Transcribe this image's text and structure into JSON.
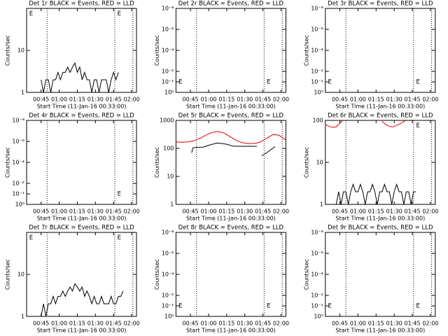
{
  "chart_data": [
    {
      "type": "line",
      "title": "Det 1r BLACK = Events, RED = LLD",
      "y_label": "Counts/sec",
      "x_label": "Start Time (11-Jan-16 00:33:00)",
      "xlim": [
        0,
        91
      ],
      "xticks": [
        {
          "value": 12,
          "label": "00:45"
        },
        {
          "value": 27,
          "label": "01:00"
        },
        {
          "value": 42,
          "label": "01:15"
        },
        {
          "value": 57,
          "label": "01:30"
        },
        {
          "value": 72,
          "label": "01:45"
        },
        {
          "value": 87,
          "label": "02:00"
        }
      ],
      "ylog": true,
      "ylim": [
        1,
        100
      ],
      "yticks": [
        1,
        10
      ],
      "vlines": [
        17,
        73,
        88
      ],
      "series": [
        {
          "name": "Events",
          "color": "#000000",
          "x": [
            12,
            14,
            16,
            18,
            20,
            22,
            24,
            26,
            28,
            30,
            32,
            34,
            36,
            38,
            40,
            42,
            44,
            46,
            48,
            50,
            52,
            54,
            56,
            58,
            60,
            62,
            64,
            66,
            68,
            70,
            72,
            74,
            76
          ],
          "values": [
            2,
            1,
            2,
            2,
            1,
            2,
            2,
            3,
            2,
            3,
            3,
            4,
            3,
            4,
            5,
            3,
            4,
            2,
            3,
            2,
            2,
            1,
            2,
            2,
            1,
            2,
            2,
            2,
            1,
            2,
            3,
            2,
            3
          ]
        }
      ],
      "annotations": [
        {
          "text": "E",
          "x": 1,
          "y": 75
        },
        {
          "text": "E",
          "x": 74,
          "y": 75
        }
      ]
    },
    {
      "type": "line",
      "title": "Det 2r BLACK = Events, RED = LLD",
      "y_label": "Counts/sec",
      "x_label": "Start Time (11-Jan-16 00:33:00)",
      "xlim": [
        0,
        91
      ],
      "xticks": [
        {
          "value": 12,
          "label": "00:45"
        },
        {
          "value": 27,
          "label": "01:00"
        },
        {
          "value": 42,
          "label": "01:15"
        },
        {
          "value": 57,
          "label": "01:30"
        },
        {
          "value": 72,
          "label": "01:45"
        },
        {
          "value": 87,
          "label": "02:00"
        }
      ],
      "ylog": true,
      "ylim": [
        1,
        1e-08
      ],
      "yticks": [
        {
          "value": 1e-08,
          "label": "10⁻⁸"
        },
        {
          "value": 1e-06,
          "label": "10⁻⁶"
        },
        {
          "value": 0.0001,
          "label": "10⁻⁴"
        },
        {
          "value": 0.01,
          "label": "10⁻²"
        },
        {
          "value": 0.1,
          "label": "10⁻¹"
        },
        {
          "value": 1,
          "label": "10⁰"
        }
      ],
      "vlines": [
        17,
        73,
        88
      ],
      "series": [],
      "annotations": [
        {
          "text": "E",
          "x": 1,
          "y": 0.1
        },
        {
          "text": "E",
          "x": 74,
          "y": 0.1
        }
      ]
    },
    {
      "type": "line",
      "title": "Det 3r BLACK = Events, RED = LLD",
      "y_label": "Counts/sec",
      "x_label": "Start Time (11-Jan-16 00:33:00)",
      "xlim": [
        0,
        91
      ],
      "xticks": [
        {
          "value": 12,
          "label": "00:45"
        },
        {
          "value": 27,
          "label": "01:00"
        },
        {
          "value": 42,
          "label": "01:15"
        },
        {
          "value": 57,
          "label": "01:30"
        },
        {
          "value": 72,
          "label": "01:45"
        },
        {
          "value": 87,
          "label": "02:00"
        }
      ],
      "ylog": true,
      "ylim": [
        1,
        1e-08
      ],
      "yticks": [
        {
          "value": 1e-08,
          "label": "10⁻⁸"
        },
        {
          "value": 1e-06,
          "label": "10⁻⁶"
        },
        {
          "value": 0.0001,
          "label": "10⁻⁴"
        },
        {
          "value": 0.01,
          "label": "10⁻²"
        },
        {
          "value": 0.1,
          "label": "10⁻¹"
        },
        {
          "value": 1,
          "label": "10⁰"
        }
      ],
      "vlines": [
        17,
        73,
        88
      ],
      "series": [],
      "annotations": [
        {
          "text": "E",
          "x": 1,
          "y": 0.1
        },
        {
          "text": "E",
          "x": 74,
          "y": 0.1
        }
      ]
    },
    {
      "type": "line",
      "title": "Det 4r BLACK = Events, RED = LLD",
      "y_label": "Counts/sec",
      "x_label": "Start Time (11-Jan-16 00:33:00)",
      "xlim": [
        0,
        91
      ],
      "xticks": [
        {
          "value": 12,
          "label": "00:45"
        },
        {
          "value": 27,
          "label": "01:00"
        },
        {
          "value": 42,
          "label": "01:15"
        },
        {
          "value": 57,
          "label": "01:30"
        },
        {
          "value": 72,
          "label": "01:45"
        },
        {
          "value": 87,
          "label": "02:00"
        }
      ],
      "ylog": true,
      "ylim": [
        1,
        1e-08
      ],
      "yticks": [
        {
          "value": 1e-08,
          "label": "10⁻⁸"
        },
        {
          "value": 1e-06,
          "label": "10⁻⁶"
        },
        {
          "value": 0.0001,
          "label": "10⁻⁴"
        },
        {
          "value": 0.01,
          "label": "10⁻²"
        },
        {
          "value": 0.1,
          "label": "10⁻¹"
        },
        {
          "value": 1,
          "label": "10⁰"
        }
      ],
      "vlines": [
        17,
        73,
        88
      ],
      "series": [],
      "annotations": [
        {
          "text": "E",
          "x": 74,
          "y": 0.1
        }
      ]
    },
    {
      "type": "line",
      "title": "Det 5r BLACK = Events, RED = LLD",
      "y_label": "Counts/sec",
      "x_label": "Start Time (11-Jan-16 00:33:00)",
      "xlim": [
        0,
        91
      ],
      "xticks": [
        {
          "value": 12,
          "label": "00:45"
        },
        {
          "value": 27,
          "label": "01:00"
        },
        {
          "value": 42,
          "label": "01:15"
        },
        {
          "value": 57,
          "label": "01:30"
        },
        {
          "value": 72,
          "label": "01:45"
        },
        {
          "value": 87,
          "label": "02:00"
        }
      ],
      "ylog": true,
      "ylim": [
        1,
        1000
      ],
      "yticks": [
        1,
        10,
        100,
        1000
      ],
      "vlines": [
        17,
        73,
        88
      ],
      "series": [
        {
          "name": "LLD",
          "color": "#e00000",
          "x": [
            0,
            5,
            10,
            15,
            20,
            25,
            30,
            35,
            40,
            45,
            50,
            55,
            60,
            65,
            70,
            75,
            80,
            85,
            91
          ],
          "values": [
            170,
            165,
            170,
            190,
            230,
            300,
            370,
            400,
            350,
            260,
            190,
            160,
            150,
            150,
            170,
            230,
            310,
            300,
            200
          ]
        },
        {
          "name": "Events",
          "color": "#000000",
          "x": [
            13,
            14,
            18,
            22,
            26,
            30,
            34,
            38,
            42,
            46,
            48,
            52,
            56,
            60,
            64,
            67,
            68,
            71,
            74,
            77,
            80,
            82
          ],
          "values": [
            70,
            105,
            110,
            110,
            125,
            140,
            155,
            150,
            140,
            125,
            120,
            120,
            118,
            120,
            118,
            120,
            null,
            55,
            65,
            80,
            100,
            115
          ]
        }
      ],
      "annotations": []
    },
    {
      "type": "line",
      "title": "Det 6r BLACK = Events, RED = LLD",
      "y_label": "Counts/sec",
      "x_label": "Start Time (11-Jan-16 00:33:00)",
      "xlim": [
        0,
        91
      ],
      "xticks": [
        {
          "value": 12,
          "label": "00:45"
        },
        {
          "value": 27,
          "label": "01:00"
        },
        {
          "value": 42,
          "label": "01:15"
        },
        {
          "value": 57,
          "label": "01:30"
        },
        {
          "value": 72,
          "label": "01:45"
        },
        {
          "value": 87,
          "label": "02:00"
        }
      ],
      "ylog": true,
      "ylim": [
        1,
        100
      ],
      "yticks": [
        1,
        10,
        100
      ],
      "vlines": [
        17,
        73,
        88
      ],
      "series": [
        {
          "name": "LLD",
          "color": "#e00000",
          "x": [
            0,
            3,
            6,
            9,
            12,
            14,
            15,
            46,
            47,
            50,
            53,
            56,
            60,
            64,
            66
          ],
          "values": [
            80,
            72,
            68,
            70,
            85,
            98,
            null,
            null,
            95,
            80,
            72,
            70,
            78,
            90,
            98
          ]
        },
        {
          "name": "Events",
          "color": "#000000",
          "x": [
            9,
            11,
            13,
            15,
            17,
            19,
            21,
            23,
            25,
            27,
            29,
            31,
            33,
            35,
            37,
            39,
            41,
            43,
            45,
            47,
            49,
            51,
            53,
            55,
            57,
            59,
            61,
            63,
            65,
            67,
            69,
            71,
            73,
            75
          ],
          "values": [
            1,
            2,
            1,
            2,
            2,
            1,
            2,
            3,
            2,
            2,
            3,
            2,
            1,
            2,
            2,
            3,
            2,
            1,
            2,
            2,
            3,
            2,
            2,
            1,
            2,
            3,
            2,
            2,
            1,
            2,
            2,
            1,
            2,
            2
          ]
        }
      ],
      "annotations": [
        {
          "text": "E",
          "x": 74,
          "y": 75
        }
      ]
    },
    {
      "type": "line",
      "title": "Det 7r BLACK = Events, RED = LLD",
      "y_label": "Counts/sec",
      "x_label": "Start Time (11-Jan-16 00:33:00)",
      "xlim": [
        0,
        91
      ],
      "xticks": [
        {
          "value": 12,
          "label": "00:45"
        },
        {
          "value": 27,
          "label": "01:00"
        },
        {
          "value": 42,
          "label": "01:15"
        },
        {
          "value": 57,
          "label": "01:30"
        },
        {
          "value": 72,
          "label": "01:45"
        },
        {
          "value": 87,
          "label": "02:00"
        }
      ],
      "ylog": true,
      "ylim": [
        1,
        100
      ],
      "yticks": [
        1,
        10
      ],
      "vlines": [
        17,
        73,
        88
      ],
      "series": [
        {
          "name": "Events",
          "color": "#000000",
          "x": [
            12,
            14,
            16,
            18,
            20,
            22,
            24,
            26,
            28,
            30,
            32,
            34,
            36,
            38,
            40,
            42,
            44,
            46,
            48,
            50,
            52,
            54,
            56,
            58,
            60,
            62,
            64,
            66,
            68,
            70,
            72,
            74,
            76,
            78,
            80
          ],
          "values": [
            1,
            2,
            1,
            2,
            2,
            3,
            2,
            3,
            3,
            4,
            3,
            4,
            5,
            4,
            6,
            5,
            4,
            5,
            3,
            4,
            3,
            2,
            3,
            2,
            2,
            3,
            2,
            2,
            2,
            3,
            2,
            2,
            3,
            3,
            4
          ]
        }
      ],
      "annotations": [
        {
          "text": "E",
          "x": 1,
          "y": 75
        },
        {
          "text": "E",
          "x": 74,
          "y": 75
        }
      ]
    },
    {
      "type": "line",
      "title": "Det 8r BLACK = Events, RED = LLD",
      "y_label": "Counts/sec",
      "x_label": "Start Time (11-Jan-16 00:33:00)",
      "xlim": [
        0,
        91
      ],
      "xticks": [
        {
          "value": 12,
          "label": "00:45"
        },
        {
          "value": 27,
          "label": "01:00"
        },
        {
          "value": 42,
          "label": "01:15"
        },
        {
          "value": 57,
          "label": "01:30"
        },
        {
          "value": 72,
          "label": "01:45"
        },
        {
          "value": 87,
          "label": "02:00"
        }
      ],
      "ylog": true,
      "ylim": [
        1,
        1e-08
      ],
      "yticks": [
        {
          "value": 1e-08,
          "label": "10⁻⁸"
        },
        {
          "value": 1e-06,
          "label": "10⁻⁶"
        },
        {
          "value": 0.0001,
          "label": "10⁻⁴"
        },
        {
          "value": 0.01,
          "label": "10⁻²"
        },
        {
          "value": 0.1,
          "label": "10⁻¹"
        },
        {
          "value": 1,
          "label": "10⁰"
        }
      ],
      "vlines": [
        17,
        73,
        88
      ],
      "series": [],
      "annotations": [
        {
          "text": "E",
          "x": 1,
          "y": 0.1
        },
        {
          "text": "E",
          "x": 74,
          "y": 0.1
        }
      ]
    },
    {
      "type": "line",
      "title": "Det 9r BLACK = Events, RED = LLD",
      "y_label": "Counts/sec",
      "x_label": "Start Time (11-Jan-16 00:33:00)",
      "xlim": [
        0,
        91
      ],
      "xticks": [
        {
          "value": 12,
          "label": "00:45"
        },
        {
          "value": 27,
          "label": "01:00"
        },
        {
          "value": 42,
          "label": "01:15"
        },
        {
          "value": 57,
          "label": "01:30"
        },
        {
          "value": 72,
          "label": "01:45"
        },
        {
          "value": 87,
          "label": "02:00"
        }
      ],
      "ylog": true,
      "ylim": [
        1,
        1e-08
      ],
      "yticks": [
        {
          "value": 1e-08,
          "label": "10⁻⁸"
        },
        {
          "value": 1e-06,
          "label": "10⁻⁶"
        },
        {
          "value": 0.0001,
          "label": "10⁻⁴"
        },
        {
          "value": 0.01,
          "label": "10⁻²"
        },
        {
          "value": 0.1,
          "label": "10⁻¹"
        },
        {
          "value": 1,
          "label": "10⁰"
        }
      ],
      "vlines": [
        17,
        73,
        88
      ],
      "series": [],
      "annotations": [
        {
          "text": "E",
          "x": 1,
          "y": 0.1
        },
        {
          "text": "E",
          "x": 74,
          "y": 0.1
        }
      ]
    }
  ]
}
